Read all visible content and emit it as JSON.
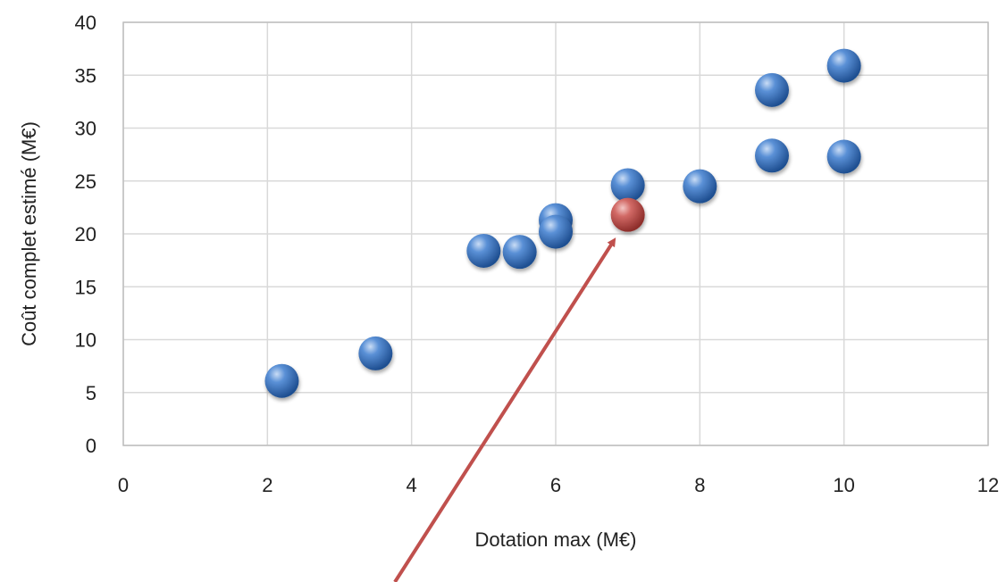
{
  "chart_data": {
    "type": "scatter",
    "title": "",
    "xlabel": "Dotation max (M€)",
    "ylabel": "Coût complet estimé (M€)",
    "xlim": [
      0,
      12
    ],
    "ylim": [
      0,
      40
    ],
    "x_ticks": [
      0,
      2,
      4,
      6,
      8,
      10,
      12
    ],
    "y_ticks": [
      0,
      5,
      10,
      15,
      20,
      25,
      30,
      35,
      40
    ],
    "grid": true,
    "legend": "none",
    "series": [
      {
        "color": "#3a74c4",
        "points": [
          {
            "x": 2.2,
            "y": 6.1
          },
          {
            "x": 3.5,
            "y": 8.7
          },
          {
            "x": 5.0,
            "y": 18.4
          },
          {
            "x": 5.5,
            "y": 18.3
          },
          {
            "x": 6.0,
            "y": 21.3
          },
          {
            "x": 6.0,
            "y": 20.2
          },
          {
            "x": 7.0,
            "y": 24.6
          },
          {
            "x": 8.0,
            "y": 24.5
          },
          {
            "x": 9.0,
            "y": 33.6
          },
          {
            "x": 9.0,
            "y": 27.4
          },
          {
            "x": 10.0,
            "y": 35.9
          },
          {
            "x": 10.0,
            "y": 27.3
          }
        ]
      },
      {
        "color": "#c0504d",
        "points": [
          {
            "x": 7.0,
            "y": 21.8
          }
        ]
      }
    ],
    "annotation": {
      "type": "arrow",
      "color": "#c0504d",
      "points_to": {
        "x": 6.8,
        "y": 19.3
      }
    }
  }
}
